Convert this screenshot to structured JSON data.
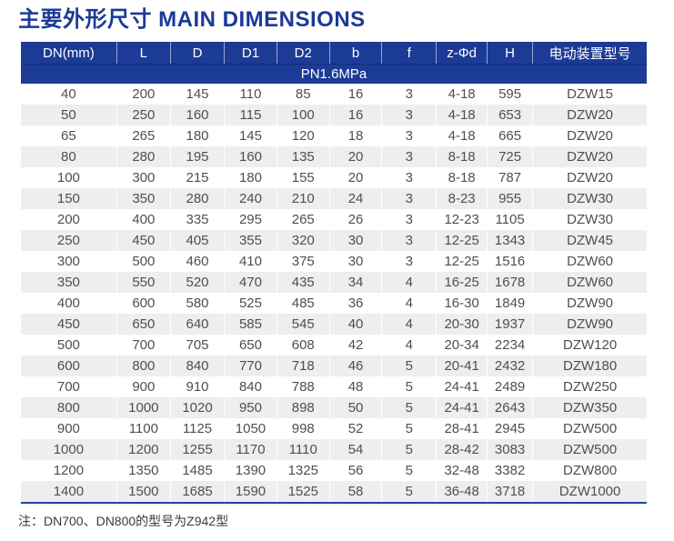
{
  "page": {
    "title": "主要外形尺寸 MAIN DIMENSIONS"
  },
  "table": {
    "columns": [
      "DN(mm)",
      "L",
      "D",
      "D1",
      "D2",
      "b",
      "f",
      "z-Φd",
      "H",
      "电动装置型号"
    ],
    "pressure_class": "PN1.6MPa",
    "rows": [
      [
        "40",
        "200",
        "145",
        "110",
        "85",
        "16",
        "3",
        "4-18",
        "595",
        "DZW15"
      ],
      [
        "50",
        "250",
        "160",
        "115",
        "100",
        "16",
        "3",
        "4-18",
        "653",
        "DZW20"
      ],
      [
        "65",
        "265",
        "180",
        "145",
        "120",
        "18",
        "3",
        "4-18",
        "665",
        "DZW20"
      ],
      [
        "80",
        "280",
        "195",
        "160",
        "135",
        "20",
        "3",
        "8-18",
        "725",
        "DZW20"
      ],
      [
        "100",
        "300",
        "215",
        "180",
        "155",
        "20",
        "3",
        "8-18",
        "787",
        "DZW20"
      ],
      [
        "150",
        "350",
        "280",
        "240",
        "210",
        "24",
        "3",
        "8-23",
        "955",
        "DZW30"
      ],
      [
        "200",
        "400",
        "335",
        "295",
        "265",
        "26",
        "3",
        "12-23",
        "1105",
        "DZW30"
      ],
      [
        "250",
        "450",
        "405",
        "355",
        "320",
        "30",
        "3",
        "12-25",
        "1343",
        "DZW45"
      ],
      [
        "300",
        "500",
        "460",
        "410",
        "375",
        "30",
        "3",
        "12-25",
        "1516",
        "DZW60"
      ],
      [
        "350",
        "550",
        "520",
        "470",
        "435",
        "34",
        "4",
        "16-25",
        "1678",
        "DZW60"
      ],
      [
        "400",
        "600",
        "580",
        "525",
        "485",
        "36",
        "4",
        "16-30",
        "1849",
        "DZW90"
      ],
      [
        "450",
        "650",
        "640",
        "585",
        "545",
        "40",
        "4",
        "20-30",
        "1937",
        "DZW90"
      ],
      [
        "500",
        "700",
        "705",
        "650",
        "608",
        "42",
        "4",
        "20-34",
        "2234",
        "DZW120"
      ],
      [
        "600",
        "800",
        "840",
        "770",
        "718",
        "46",
        "5",
        "20-41",
        "2432",
        "DZW180"
      ],
      [
        "700",
        "900",
        "910",
        "840",
        "788",
        "48",
        "5",
        "24-41",
        "2489",
        "DZW250"
      ],
      [
        "800",
        "1000",
        "1020",
        "950",
        "898",
        "50",
        "5",
        "24-41",
        "2643",
        "DZW350"
      ],
      [
        "900",
        "1100",
        "1125",
        "1050",
        "998",
        "52",
        "5",
        "28-41",
        "2945",
        "DZW500"
      ],
      [
        "1000",
        "1200",
        "1255",
        "1170",
        "1110",
        "54",
        "5",
        "28-42",
        "3083",
        "DZW500"
      ],
      [
        "1200",
        "1350",
        "1485",
        "1390",
        "1325",
        "56",
        "5",
        "32-48",
        "3382",
        "DZW800"
      ],
      [
        "1400",
        "1500",
        "1685",
        "1590",
        "1525",
        "58",
        "5",
        "36-48",
        "3718",
        "DZW1000"
      ]
    ]
  },
  "footnote": "注：DN700、DN800的型号为Z942型",
  "colors": {
    "title_text": "#1b3a96",
    "header_bg": "#1c3b96",
    "row_alt_bg": "#eeeeee",
    "body_text": "#4f4f4f",
    "bottom_rule": "#1f44a0"
  }
}
